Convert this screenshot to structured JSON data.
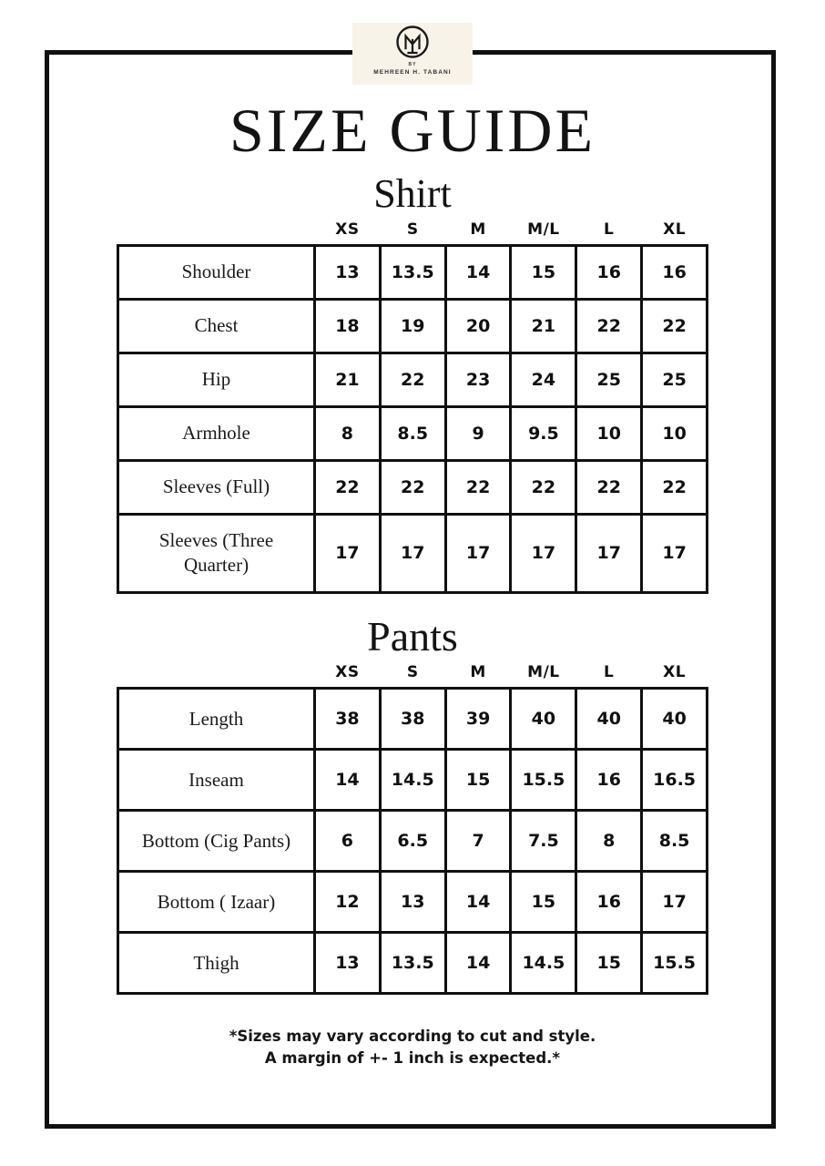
{
  "brand": {
    "monogram": "MT",
    "by_label": "BY",
    "name": "MEHREEN H. TABANI"
  },
  "page": {
    "title": "SIZE GUIDE",
    "footnote_line1": "*Sizes may vary according to cut and style.",
    "footnote_line2": "A margin of +- 1 inch is expected.*"
  },
  "tables": [
    {
      "title": "Shirt",
      "columns": [
        "XS",
        "S",
        "M",
        "M/L",
        "L",
        "XL"
      ],
      "rows": [
        {
          "label": "Shoulder",
          "values": [
            "13",
            "13.5",
            "14",
            "15",
            "16",
            "16"
          ]
        },
        {
          "label": "Chest",
          "values": [
            "18",
            "19",
            "20",
            "21",
            "22",
            "22"
          ]
        },
        {
          "label": "Hip",
          "values": [
            "21",
            "22",
            "23",
            "24",
            "25",
            "25"
          ]
        },
        {
          "label": "Armhole",
          "values": [
            "8",
            "8.5",
            "9",
            "9.5",
            "10",
            "10"
          ]
        },
        {
          "label": "Sleeves (Full)",
          "values": [
            "22",
            "22",
            "22",
            "22",
            "22",
            "22"
          ]
        },
        {
          "label": "Sleeves (Three Quarter)",
          "values": [
            "17",
            "17",
            "17",
            "17",
            "17",
            "17"
          ]
        }
      ]
    },
    {
      "title": "Pants",
      "columns": [
        "XS",
        "S",
        "M",
        "M/L",
        "L",
        "XL"
      ],
      "rows": [
        {
          "label": "Length",
          "values": [
            "38",
            "38",
            "39",
            "40",
            "40",
            "40"
          ]
        },
        {
          "label": "Inseam",
          "values": [
            "14",
            "14.5",
            "15",
            "15.5",
            "16",
            "16.5"
          ]
        },
        {
          "label": "Bottom (Cig Pants)",
          "values": [
            "6",
            "6.5",
            "7",
            "7.5",
            "8",
            "8.5"
          ]
        },
        {
          "label": "Bottom ( Izaar)",
          "values": [
            "12",
            "13",
            "14",
            "15",
            "16",
            "17"
          ]
        },
        {
          "label": "Thigh",
          "values": [
            "13",
            "13.5",
            "14",
            "14.5",
            "15",
            "15.5"
          ]
        }
      ]
    }
  ],
  "colors": {
    "background": "#ffffff",
    "ink": "#101010",
    "logo_panel": "#f8f3e9"
  }
}
